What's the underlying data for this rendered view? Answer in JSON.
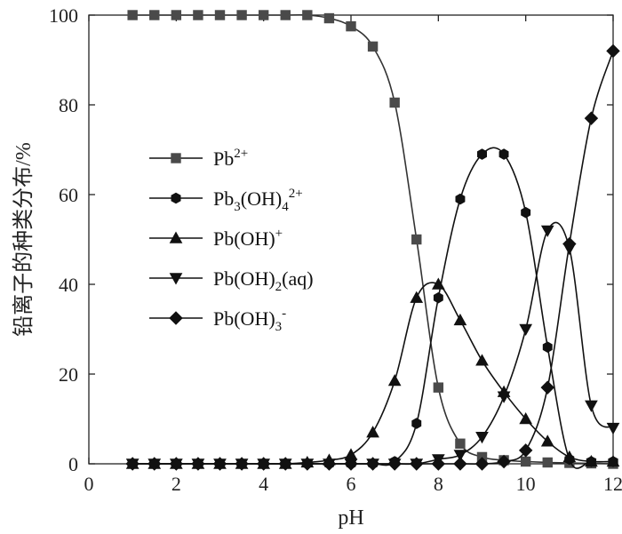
{
  "chart_data": {
    "type": "line",
    "title": "",
    "xlabel": "pH",
    "ylabel": "铅离子的种类分布/%",
    "xlim": [
      0,
      12
    ],
    "ylim": [
      0,
      100
    ],
    "x_ticks": [
      "0",
      "2",
      "4",
      "6",
      "8",
      "10",
      "12"
    ],
    "y_ticks": [
      "0",
      "20",
      "40",
      "60",
      "80",
      "100"
    ],
    "grid": false,
    "legend_position": "left-middle",
    "series": [
      {
        "name": "Pb2+",
        "legend": {
          "base": "Pb",
          "sup": "2+"
        },
        "marker": "square",
        "color": "#4a4a4a",
        "points": [
          [
            1.0,
            100
          ],
          [
            1.5,
            100
          ],
          [
            2.0,
            100
          ],
          [
            2.5,
            100
          ],
          [
            3.0,
            100
          ],
          [
            3.5,
            100
          ],
          [
            4.0,
            100
          ],
          [
            4.5,
            100
          ],
          [
            5.0,
            100
          ],
          [
            5.5,
            99.3
          ],
          [
            6.0,
            97.5
          ],
          [
            6.5,
            93
          ],
          [
            7.0,
            80.5
          ],
          [
            7.5,
            50
          ],
          [
            8.0,
            17
          ],
          [
            8.5,
            4.5
          ],
          [
            9.0,
            1.5
          ],
          [
            9.5,
            0.8
          ],
          [
            10.0,
            0.5
          ],
          [
            10.5,
            0.3
          ],
          [
            11.0,
            0.2
          ],
          [
            11.5,
            0.1
          ],
          [
            12.0,
            0
          ]
        ]
      },
      {
        "name": "Pb3(OH)42+",
        "legend": {
          "base": "Pb",
          "sub1": "3",
          "mid": "(OH)",
          "sub2": "4",
          "sup": "2+"
        },
        "marker": "hexagon",
        "color": "#111111",
        "points": [
          [
            1.0,
            0
          ],
          [
            1.5,
            0
          ],
          [
            2.0,
            0
          ],
          [
            2.5,
            0
          ],
          [
            3.0,
            0
          ],
          [
            3.5,
            0
          ],
          [
            4.0,
            0
          ],
          [
            4.5,
            0
          ],
          [
            5.0,
            0
          ],
          [
            5.5,
            0
          ],
          [
            6.0,
            0
          ],
          [
            6.5,
            0
          ],
          [
            7.0,
            0.5
          ],
          [
            7.5,
            9
          ],
          [
            8.0,
            37
          ],
          [
            8.5,
            59
          ],
          [
            9.0,
            69
          ],
          [
            9.5,
            69
          ],
          [
            10.0,
            56
          ],
          [
            10.5,
            26
          ],
          [
            11.0,
            1
          ],
          [
            11.5,
            0.5
          ],
          [
            12.0,
            0.5
          ]
        ]
      },
      {
        "name": "Pb(OH)+",
        "legend": {
          "base": "Pb(OH)",
          "sup": "+"
        },
        "marker": "triangle-up",
        "color": "#111111",
        "points": [
          [
            1.0,
            0
          ],
          [
            1.5,
            0
          ],
          [
            2.0,
            0
          ],
          [
            2.5,
            0
          ],
          [
            3.0,
            0
          ],
          [
            3.5,
            0
          ],
          [
            4.0,
            0
          ],
          [
            4.5,
            0
          ],
          [
            5.0,
            0.3
          ],
          [
            5.5,
            0.8
          ],
          [
            6.0,
            2
          ],
          [
            6.5,
            7
          ],
          [
            7.0,
            18.5
          ],
          [
            7.5,
            37
          ],
          [
            8.0,
            40
          ],
          [
            8.5,
            32
          ],
          [
            9.0,
            23
          ],
          [
            9.5,
            16
          ],
          [
            10.0,
            10
          ],
          [
            10.5,
            5
          ],
          [
            11.0,
            1.5
          ],
          [
            11.5,
            0.5
          ],
          [
            12.0,
            0.5
          ]
        ]
      },
      {
        "name": "Pb(OH)2(aq)",
        "legend": {
          "base": "Pb(OH)",
          "sub1": "2",
          "mid": "(aq)"
        },
        "marker": "triangle-down",
        "color": "#111111",
        "points": [
          [
            1.0,
            0
          ],
          [
            1.5,
            0
          ],
          [
            2.0,
            0
          ],
          [
            2.5,
            0
          ],
          [
            3.0,
            0
          ],
          [
            3.5,
            0
          ],
          [
            4.0,
            0
          ],
          [
            4.5,
            0
          ],
          [
            5.0,
            0
          ],
          [
            5.5,
            0
          ],
          [
            6.0,
            0
          ],
          [
            6.5,
            0
          ],
          [
            7.0,
            0
          ],
          [
            7.5,
            0
          ],
          [
            8.0,
            1
          ],
          [
            8.5,
            2
          ],
          [
            9.0,
            6
          ],
          [
            9.5,
            15
          ],
          [
            10.0,
            30
          ],
          [
            10.5,
            52
          ],
          [
            11.0,
            48
          ],
          [
            11.5,
            13
          ],
          [
            12.0,
            8
          ]
        ]
      },
      {
        "name": "Pb(OH)3-",
        "legend": {
          "base": "Pb(OH)",
          "sub1": "3",
          "sup": "-"
        },
        "marker": "diamond",
        "color": "#111111",
        "points": [
          [
            1.0,
            0
          ],
          [
            1.5,
            0
          ],
          [
            2.0,
            0
          ],
          [
            2.5,
            0
          ],
          [
            3.0,
            0
          ],
          [
            3.5,
            0
          ],
          [
            4.0,
            0
          ],
          [
            4.5,
            0
          ],
          [
            5.0,
            0
          ],
          [
            5.5,
            0
          ],
          [
            6.0,
            0
          ],
          [
            6.5,
            0
          ],
          [
            7.0,
            0
          ],
          [
            7.5,
            0
          ],
          [
            8.0,
            0
          ],
          [
            8.5,
            0
          ],
          [
            9.0,
            0
          ],
          [
            9.5,
            0.5
          ],
          [
            10.0,
            3
          ],
          [
            10.5,
            17
          ],
          [
            11.0,
            49
          ],
          [
            11.5,
            77
          ],
          [
            12.0,
            92
          ]
        ]
      }
    ]
  }
}
